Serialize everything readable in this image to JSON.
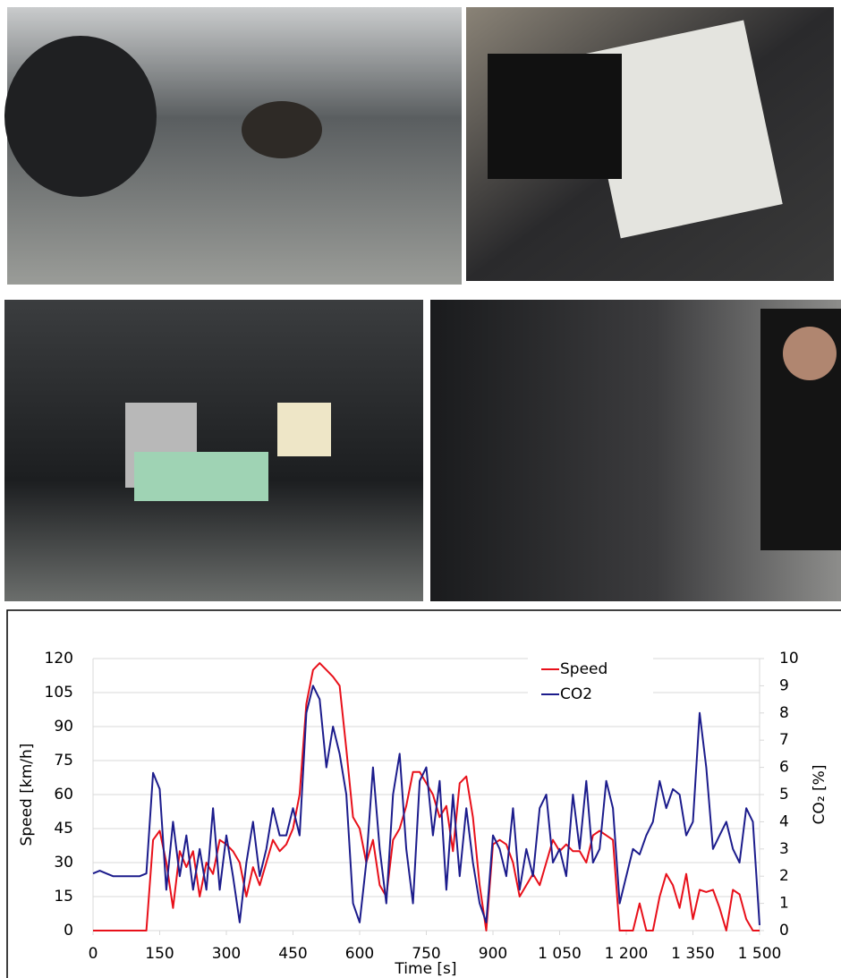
{
  "chart_data": {
    "type": "line",
    "x_label": "Time [s]",
    "y_label": "Speed [km/h]",
    "y2_label": "CO₂ [%]",
    "x": [
      0,
      15,
      30,
      45,
      60,
      75,
      90,
      105,
      120,
      135,
      150,
      165,
      180,
      195,
      210,
      225,
      240,
      255,
      270,
      285,
      300,
      315,
      330,
      345,
      360,
      375,
      390,
      405,
      420,
      435,
      450,
      465,
      480,
      495,
      510,
      525,
      540,
      555,
      570,
      585,
      600,
      615,
      630,
      645,
      660,
      675,
      690,
      705,
      720,
      735,
      750,
      765,
      780,
      795,
      810,
      825,
      840,
      855,
      870,
      885,
      900,
      915,
      930,
      945,
      960,
      975,
      990,
      1005,
      1020,
      1035,
      1050,
      1065,
      1080,
      1095,
      1110,
      1125,
      1140,
      1155,
      1170,
      1185,
      1200,
      1215,
      1230,
      1245,
      1260,
      1275,
      1290,
      1305,
      1320,
      1335,
      1350,
      1365,
      1380,
      1395,
      1410,
      1425,
      1440,
      1455,
      1470,
      1485,
      1500
    ],
    "series": [
      {
        "name": "Speed",
        "color": "#e8101a",
        "values": [
          0,
          0,
          0,
          0,
          0,
          0,
          0,
          0,
          0,
          40,
          44,
          30,
          10,
          35,
          28,
          35,
          15,
          30,
          25,
          40,
          38,
          35,
          30,
          15,
          28,
          20,
          30,
          40,
          35,
          38,
          45,
          60,
          100,
          115,
          118,
          115,
          112,
          108,
          80,
          50,
          45,
          30,
          40,
          20,
          15,
          40,
          45,
          55,
          70,
          70,
          65,
          60,
          50,
          55,
          35,
          65,
          68,
          50,
          20,
          0,
          38,
          40,
          38,
          30,
          15,
          20,
          25,
          20,
          30,
          40,
          35,
          38,
          35,
          35,
          30,
          42,
          44,
          42,
          40,
          0,
          0,
          0,
          12,
          0,
          0,
          15,
          25,
          20,
          10,
          25,
          5,
          18,
          17,
          18,
          10,
          0,
          18,
          16,
          5,
          0,
          0
        ]
      },
      {
        "name": "CO2",
        "color": "#1c1c8c",
        "axis": "y2",
        "values": [
          2.1,
          2.2,
          2.1,
          2.0,
          2.0,
          2.0,
          2.0,
          2.0,
          2.1,
          5.8,
          5.2,
          1.5,
          4.0,
          2.0,
          3.5,
          1.5,
          3.0,
          1.5,
          4.5,
          1.5,
          3.5,
          2.0,
          0.3,
          2.5,
          4.0,
          2.0,
          3.0,
          4.5,
          3.5,
          3.5,
          4.5,
          3.5,
          8.0,
          9.0,
          8.5,
          6.0,
          7.5,
          6.5,
          5.0,
          1.0,
          0.3,
          2.5,
          6.0,
          3.0,
          1.0,
          5.0,
          6.5,
          3.0,
          1.0,
          5.5,
          6.0,
          3.5,
          5.5,
          1.5,
          5.0,
          2.0,
          4.5,
          2.5,
          1.0,
          0.3,
          3.5,
          3.0,
          2.0,
          4.5,
          1.5,
          3.0,
          2.0,
          4.5,
          5.0,
          2.5,
          3.0,
          2.0,
          5.0,
          3.0,
          5.5,
          2.5,
          3.0,
          5.5,
          4.5,
          1.0,
          2.0,
          3.0,
          2.8,
          3.5,
          4.0,
          5.5,
          4.5,
          5.2,
          5.0,
          3.5,
          4.0,
          8.0,
          6.0,
          3.0,
          3.5,
          4.0,
          3.0,
          2.5,
          4.5,
          4.0,
          0.2
        ]
      }
    ],
    "xlim": [
      0,
      1500
    ],
    "xticks": [
      0,
      150,
      300,
      450,
      600,
      750,
      900,
      {
        "value": 1050,
        "label": "1 050"
      },
      {
        "value": 1200,
        "label": "1 200"
      },
      {
        "value": 1350,
        "label": "1 350"
      },
      {
        "value": 1500,
        "label": "1 500"
      }
    ],
    "ylim": [
      0,
      120
    ],
    "yticks": [
      0,
      15,
      30,
      45,
      60,
      75,
      90,
      105,
      120
    ],
    "y2lim": [
      0,
      10
    ],
    "y2ticks": [
      0,
      1,
      2,
      3,
      4,
      5,
      6,
      7,
      8,
      9,
      10
    ],
    "grid": true,
    "legend": "top-right"
  }
}
